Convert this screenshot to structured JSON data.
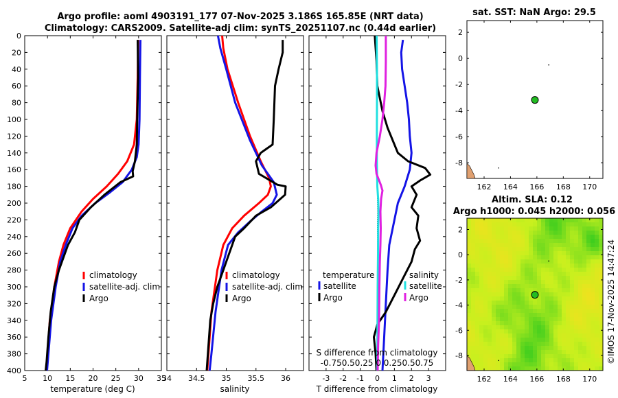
{
  "title": {
    "line1": "Argo profile: aoml 4903191_177 07-Nov-2025 3.186S 165.85E (NRT data)",
    "line2": "Climatology: CARS2009. Satellite-adj clim: synTS_20251107.nc (0.44d earlier)"
  },
  "colors": {
    "red": "#ff0000",
    "blue": "#1414e6",
    "black": "#000000",
    "cyan": "#20e0e0",
    "magenta": "#e020e0",
    "land": "#e0a070"
  },
  "legend1": {
    "climatology": "climatology",
    "satellite": "satellite-adj. clim",
    "argo": "Argo"
  },
  "legend3": {
    "temperature_header": "temperature",
    "salinity_header": "salinity",
    "satellite": "satellite",
    "argo": "Argo"
  },
  "sst_title": "sat. SST: NaN Argo: 29.5",
  "sla_title1": "Altim. SLA: 0.12",
  "sla_title2": "Argo h1000: 0.045 h2000: 0.056",
  "watermark": "©IMOS 17-Nov-2025 14:47:24",
  "chart_data": [
    {
      "type": "line",
      "name": "temperature profile",
      "xlabel": "temperature (deg C)",
      "ylabel": "",
      "xlim": [
        5,
        35
      ],
      "ylim": [
        0,
        400
      ],
      "xticks": [
        5,
        10,
        15,
        20,
        25,
        30,
        35
      ],
      "yticks": [
        0,
        20,
        40,
        60,
        80,
        100,
        120,
        140,
        160,
        180,
        200,
        220,
        240,
        260,
        280,
        300,
        320,
        340,
        360,
        380,
        400
      ],
      "series": [
        {
          "name": "climatology",
          "color": "red",
          "points": [
            [
              29.9,
              5
            ],
            [
              29.8,
              50
            ],
            [
              29.6,
              100
            ],
            [
              29.0,
              130
            ],
            [
              27.5,
              150
            ],
            [
              25.5,
              165
            ],
            [
              23.0,
              180
            ],
            [
              20.0,
              195
            ],
            [
              17.5,
              210
            ],
            [
              15.0,
              230
            ],
            [
              13.5,
              250
            ],
            [
              12.5,
              270
            ],
            [
              11.5,
              300
            ],
            [
              10.5,
              340
            ],
            [
              10.0,
              380
            ],
            [
              9.8,
              400
            ]
          ]
        },
        {
          "name": "satellite-adj. clim",
          "color": "blue",
          "points": [
            [
              30.4,
              5
            ],
            [
              30.3,
              50
            ],
            [
              30.2,
              100
            ],
            [
              30.0,
              130
            ],
            [
              29.6,
              145
            ],
            [
              28.5,
              160
            ],
            [
              26.5,
              175
            ],
            [
              23.5,
              188
            ],
            [
              20.5,
              200
            ],
            [
              17.5,
              215
            ],
            [
              15.5,
              230
            ],
            [
              14.0,
              250
            ],
            [
              12.8,
              270
            ],
            [
              11.8,
              300
            ],
            [
              10.8,
              340
            ],
            [
              10.2,
              380
            ],
            [
              9.9,
              400
            ]
          ]
        },
        {
          "name": "Argo",
          "color": "black",
          "points": [
            [
              29.8,
              5
            ],
            [
              29.9,
              50
            ],
            [
              29.7,
              100
            ],
            [
              29.6,
              130
            ],
            [
              29.2,
              150
            ],
            [
              28.7,
              162
            ],
            [
              28.8,
              168
            ],
            [
              26.0,
              175
            ],
            [
              22.5,
              190
            ],
            [
              19.5,
              205
            ],
            [
              17.0,
              220
            ],
            [
              16.0,
              235
            ],
            [
              14.5,
              250
            ],
            [
              13.5,
              265
            ],
            [
              12.5,
              280
            ],
            [
              11.5,
              300
            ],
            [
              10.7,
              330
            ],
            [
              10.2,
              360
            ],
            [
              9.8,
              390
            ],
            [
              9.6,
              400
            ]
          ]
        }
      ]
    },
    {
      "type": "line",
      "name": "salinity profile",
      "xlabel": "salinity",
      "xlim": [
        34,
        36.3
      ],
      "ylim": [
        0,
        400
      ],
      "xticks": [
        34,
        34.5,
        35,
        35.5,
        36
      ],
      "series": [
        {
          "name": "climatology",
          "color": "red",
          "points": [
            [
              34.93,
              0
            ],
            [
              34.95,
              15
            ],
            [
              35.02,
              40
            ],
            [
              35.2,
              80
            ],
            [
              35.4,
              120
            ],
            [
              35.58,
              150
            ],
            [
              35.72,
              170
            ],
            [
              35.75,
              180
            ],
            [
              35.7,
              190
            ],
            [
              35.55,
              200
            ],
            [
              35.3,
              215
            ],
            [
              35.1,
              230
            ],
            [
              34.95,
              250
            ],
            [
              34.85,
              280
            ],
            [
              34.75,
              330
            ],
            [
              34.7,
              380
            ],
            [
              34.68,
              400
            ]
          ]
        },
        {
          "name": "satellite-adj. clim",
          "color": "blue",
          "points": [
            [
              34.86,
              0
            ],
            [
              34.9,
              15
            ],
            [
              35.0,
              40
            ],
            [
              35.15,
              80
            ],
            [
              35.4,
              125
            ],
            [
              35.6,
              155
            ],
            [
              35.8,
              175
            ],
            [
              35.85,
              190
            ],
            [
              35.78,
              200
            ],
            [
              35.6,
              210
            ],
            [
              35.4,
              222
            ],
            [
              35.2,
              235
            ],
            [
              35.03,
              250
            ],
            [
              34.92,
              280
            ],
            [
              34.82,
              330
            ],
            [
              34.75,
              380
            ],
            [
              34.72,
              400
            ]
          ]
        },
        {
          "name": "Argo",
          "color": "black",
          "points": [
            [
              35.95,
              5
            ],
            [
              35.95,
              20
            ],
            [
              35.88,
              40
            ],
            [
              35.82,
              60
            ],
            [
              35.81,
              80
            ],
            [
              35.8,
              100
            ],
            [
              35.78,
              130
            ],
            [
              35.58,
              140
            ],
            [
              35.5,
              150
            ],
            [
              35.55,
              165
            ],
            [
              35.86,
              178
            ],
            [
              36.0,
              180
            ],
            [
              35.99,
              190
            ],
            [
              35.75,
              205
            ],
            [
              35.5,
              215
            ],
            [
              35.3,
              230
            ],
            [
              35.15,
              240
            ],
            [
              35.05,
              260
            ],
            [
              34.95,
              280
            ],
            [
              34.85,
              300
            ],
            [
              34.78,
              320
            ],
            [
              34.73,
              340
            ],
            [
              34.7,
              370
            ],
            [
              34.67,
              400
            ]
          ]
        }
      ]
    },
    {
      "type": "line",
      "name": "difference from climatology",
      "xlabel": "T difference from climatology",
      "secondary_xlabel": "S difference from climatology",
      "xlim": [
        -4,
        4
      ],
      "ylim": [
        0,
        400
      ],
      "xticks": [
        -3,
        -2,
        -1,
        0,
        1,
        2,
        3
      ],
      "secondary_xticks": [
        -0.75,
        -0.5,
        -0.25,
        0,
        0.25,
        0.5,
        0.75
      ],
      "secondary_xtick_labels": "-0.750.50.25 0 0.250.50.75",
      "series": [
        {
          "name": "temperature satellite",
          "color": "blue",
          "points": [
            [
              1.5,
              5
            ],
            [
              1.4,
              20
            ],
            [
              1.45,
              40
            ],
            [
              1.6,
              60
            ],
            [
              1.75,
              80
            ],
            [
              1.85,
              100
            ],
            [
              1.9,
              120
            ],
            [
              2.0,
              140
            ],
            [
              1.9,
              160
            ],
            [
              1.6,
              180
            ],
            [
              1.2,
              200
            ],
            [
              1.0,
              220
            ],
            [
              0.7,
              250
            ],
            [
              0.6,
              280
            ],
            [
              0.5,
              320
            ],
            [
              0.4,
              360
            ],
            [
              0.3,
              400
            ]
          ]
        },
        {
          "name": "temperature Argo",
          "color": "black",
          "points": [
            [
              -0.15,
              0
            ],
            [
              -0.05,
              30
            ],
            [
              0.0,
              60
            ],
            [
              0.3,
              90
            ],
            [
              0.6,
              110
            ],
            [
              0.9,
              125
            ],
            [
              1.2,
              140
            ],
            [
              1.8,
              150
            ],
            [
              2.8,
              158
            ],
            [
              3.1,
              166
            ],
            [
              2.5,
              173
            ],
            [
              2.0,
              180
            ],
            [
              2.3,
              190
            ],
            [
              2.0,
              205
            ],
            [
              2.4,
              215
            ],
            [
              2.3,
              230
            ],
            [
              2.5,
              245
            ],
            [
              2.2,
              255
            ],
            [
              2.0,
              270
            ],
            [
              1.5,
              290
            ],
            [
              1.0,
              310
            ],
            [
              0.5,
              330
            ],
            [
              0.0,
              345
            ],
            [
              -0.2,
              360
            ],
            [
              -0.1,
              380
            ],
            [
              -0.05,
              400
            ]
          ]
        },
        {
          "name": "salinity satellite",
          "color": "cyan",
          "points": [
            [
              -0.04,
              0
            ],
            [
              -0.02,
              40
            ],
            [
              -0.02,
              80
            ],
            [
              -0.03,
              120
            ],
            [
              -0.03,
              150
            ],
            [
              0.0,
              180
            ],
            [
              0.05,
              195
            ],
            [
              0.07,
              210
            ],
            [
              0.05,
              230
            ],
            [
              0.04,
              260
            ],
            [
              0.02,
              300
            ],
            [
              0.01,
              350
            ],
            [
              0.0,
              400
            ]
          ]
        },
        {
          "name": "salinity Argo",
          "color": "magenta",
          "points": [
            [
              0.5,
              0
            ],
            [
              0.5,
              30
            ],
            [
              0.48,
              60
            ],
            [
              0.4,
              80
            ],
            [
              0.3,
              100
            ],
            [
              0.15,
              120
            ],
            [
              -0.05,
              140
            ],
            [
              -0.1,
              155
            ],
            [
              -0.05,
              165
            ],
            [
              0.2,
              178
            ],
            [
              0.3,
              185
            ],
            [
              0.22,
              195
            ],
            [
              0.18,
              210
            ],
            [
              0.2,
              230
            ],
            [
              0.18,
              250
            ],
            [
              0.15,
              270
            ],
            [
              0.12,
              300
            ],
            [
              0.1,
              340
            ],
            [
              0.05,
              370
            ],
            [
              0.02,
              400
            ]
          ]
        }
      ]
    },
    {
      "type": "scatter",
      "name": "sat. SST map",
      "title": "sat. SST: NaN Argo: 29.5",
      "xlim": [
        160.7,
        171
      ],
      "ylim": [
        -9.2,
        2.9
      ],
      "xticks": [
        162,
        164,
        166,
        168,
        170
      ],
      "yticks": [
        -8,
        -6,
        -4,
        -2,
        0,
        2
      ],
      "points": [
        {
          "x": 165.85,
          "y": -3.186,
          "label": "Argo float"
        }
      ]
    },
    {
      "type": "heatmap",
      "name": "Altimetry SLA map",
      "title": "Altim. SLA: 0.12",
      "subtitle": "Argo h1000: 0.045 h2000: 0.056",
      "xlim": [
        160.7,
        171
      ],
      "ylim": [
        -9.2,
        2.9
      ],
      "xticks": [
        162,
        164,
        166,
        168,
        170
      ],
      "yticks": [
        -8,
        -6,
        -4,
        -2,
        0,
        2
      ],
      "points": [
        {
          "x": 165.85,
          "y": -3.186,
          "label": "Argo float"
        }
      ]
    }
  ]
}
